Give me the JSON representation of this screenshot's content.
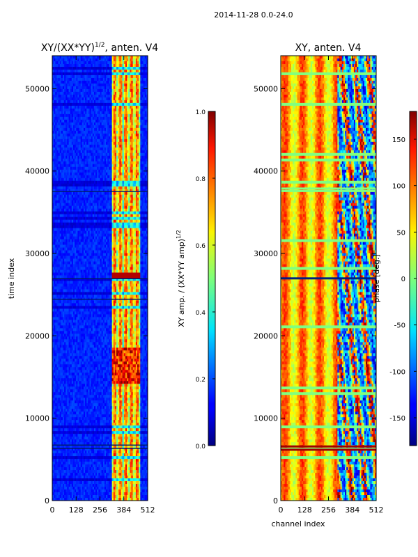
{
  "figure_title": "2014-11-28 0.0-24.0",
  "chart_data": [
    {
      "type": "heatmap",
      "title": "XY/(XX*YY)^1/2, anten. V4",
      "title_main": "XY/(XX*YY)",
      "title_sup": "1/2",
      "title_tail": ", anten. V4",
      "xlabel": "",
      "ylabel": "time index",
      "xlim": [
        0,
        512
      ],
      "ylim": [
        0,
        54000
      ],
      "x_ticks": [
        0,
        128,
        256,
        384,
        512
      ],
      "y_ticks": [
        0,
        10000,
        20000,
        30000,
        40000,
        50000
      ],
      "colormap": "jet",
      "colorbar": {
        "label": "XY amp. / (XX*YY amp)^1/2",
        "label_main": "XY amp. / (XX*YY amp)",
        "label_sup": "1/2",
        "range": [
          0.0,
          1.0
        ],
        "ticks": [
          "0.0",
          "0.2",
          "0.4",
          "0.6",
          "0.8",
          "1.0"
        ]
      },
      "grid": false
    },
    {
      "type": "heatmap",
      "title": "XY, anten. V4",
      "xlabel": "channel index",
      "ylabel": "",
      "xlim": [
        0,
        512
      ],
      "ylim": [
        0,
        54000
      ],
      "x_ticks": [
        0,
        128,
        256,
        384,
        512
      ],
      "y_ticks": [
        0,
        10000,
        20000,
        30000,
        40000,
        50000
      ],
      "colormap": "jet",
      "colorbar": {
        "label": "phase [deg.]",
        "range": [
          -180,
          180
        ],
        "ticks": [
          "-150",
          "-100",
          "-50",
          "0",
          "50",
          "100",
          "150"
        ]
      },
      "grid": false
    }
  ]
}
